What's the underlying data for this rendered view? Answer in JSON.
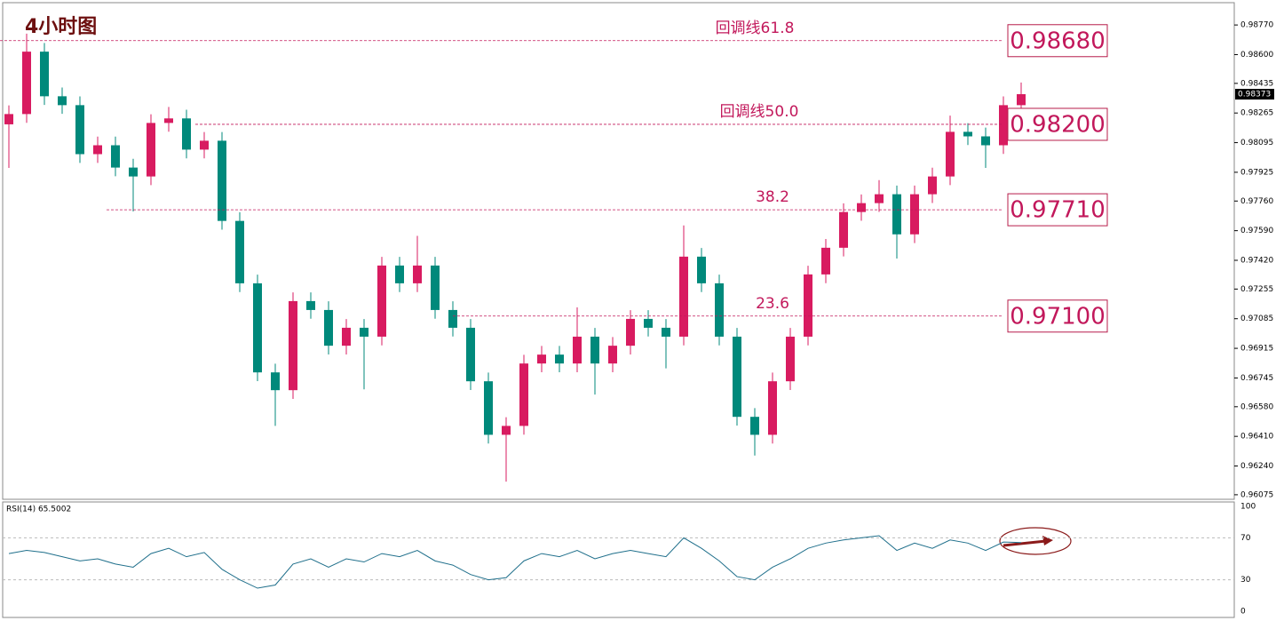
{
  "chart_data": {
    "type": "candlestick",
    "title": "4小时图",
    "open": [
      0.982,
      0.98259,
      0.98617,
      0.98361,
      0.9831,
      0.98029,
      0.9808,
      0.97952,
      0.97901,
      0.98208,
      0.98234,
      0.98055,
      0.98106,
      0.97646,
      0.97288,
      0.96777,
      0.96675,
      0.97186,
      0.97135,
      0.9693,
      0.97033,
      0.96982,
      0.9739,
      0.97288,
      0.9739,
      0.97135,
      0.97033,
      0.96726,
      0.96419,
      0.9647,
      0.96828,
      0.96879,
      0.96828,
      0.96982,
      0.96828,
      0.9693,
      0.97084,
      0.97033,
      0.96982,
      0.97441,
      0.97288,
      0.96982,
      0.96522,
      0.96419,
      0.96726,
      0.96982,
      0.97339,
      0.97492,
      0.97697,
      0.97748,
      0.97799,
      0.97569,
      0.97799,
      0.97901,
      0.98157,
      0.98131,
      0.9808,
      0.9831
    ],
    "high": [
      0.98309,
      0.9872,
      0.98667,
      0.98411,
      0.9836,
      0.9813,
      0.9813,
      0.98002,
      0.98258,
      0.983,
      0.98284,
      0.98156,
      0.98156,
      0.97696,
      0.97338,
      0.96827,
      0.97236,
      0.97236,
      0.97185,
      0.97083,
      0.97083,
      0.9744,
      0.9744,
      0.9756,
      0.9744,
      0.97185,
      0.97083,
      0.96776,
      0.9652,
      0.96878,
      0.96929,
      0.96929,
      0.9715,
      0.97032,
      0.9698,
      0.97134,
      0.97134,
      0.97083,
      0.9762,
      0.97491,
      0.97338,
      0.97032,
      0.96572,
      0.96776,
      0.97032,
      0.97389,
      0.97542,
      0.97747,
      0.97798,
      0.9788,
      0.97849,
      0.97849,
      0.97951,
      0.9825,
      0.98207,
      0.98181,
      0.9836,
      0.9844
    ],
    "low": [
      0.9795,
      0.98209,
      0.98311,
      0.9826,
      0.97979,
      0.97979,
      0.97902,
      0.977,
      0.97851,
      0.98158,
      0.98005,
      0.98005,
      0.97596,
      0.97238,
      0.96727,
      0.9647,
      0.96625,
      0.97085,
      0.9688,
      0.9688,
      0.9668,
      0.96932,
      0.97238,
      0.97238,
      0.97085,
      0.96983,
      0.96676,
      0.96369,
      0.9615,
      0.9642,
      0.96778,
      0.96778,
      0.96778,
      0.9665,
      0.96778,
      0.9688,
      0.96983,
      0.968,
      0.96932,
      0.97238,
      0.96932,
      0.96472,
      0.963,
      0.96369,
      0.96676,
      0.96932,
      0.97289,
      0.97442,
      0.97647,
      0.97698,
      0.9743,
      0.97519,
      0.97749,
      0.97851,
      0.98081,
      0.9795,
      0.9803,
      0.9826
    ],
    "close": [
      0.98259,
      0.98617,
      0.98361,
      0.9831,
      0.98029,
      0.9808,
      0.97952,
      0.97901,
      0.98208,
      0.98234,
      0.98055,
      0.98106,
      0.97646,
      0.97288,
      0.96777,
      0.96675,
      0.97186,
      0.97135,
      0.9693,
      0.97033,
      0.96982,
      0.9739,
      0.97288,
      0.9739,
      0.97135,
      0.97033,
      0.96726,
      0.96419,
      0.9647,
      0.96828,
      0.96879,
      0.96828,
      0.96982,
      0.96828,
      0.9693,
      0.97084,
      0.97033,
      0.96982,
      0.97441,
      0.97288,
      0.96982,
      0.96522,
      0.96419,
      0.96726,
      0.96982,
      0.97339,
      0.97492,
      0.97697,
      0.97748,
      0.97799,
      0.97569,
      0.97799,
      0.97901,
      0.98157,
      0.98131,
      0.9808,
      0.9831,
      0.98373
    ],
    "up_color": "#d81b60",
    "down_color": "#00897b",
    "ylim": [
      0.96049,
      0.98898
    ],
    "yticks": [
      {
        "value": 0.9877,
        "label": "0.98770"
      },
      {
        "value": 0.986,
        "label": "0.98600"
      },
      0.98435,
      0.98265,
      0.98095,
      0.97925,
      {
        "value": 0.9776,
        "label": "0.97760"
      },
      {
        "value": 0.9759,
        "label": "0.97590"
      },
      {
        "value": 0.9742,
        "label": "0.97420"
      },
      0.97255,
      0.97085,
      0.96915,
      0.96745,
      {
        "value": 0.9658,
        "label": "0.96580"
      },
      {
        "value": 0.9641,
        "label": "0.96410"
      },
      {
        "value": 0.9624,
        "label": "0.96240"
      },
      0.96075
    ],
    "current_price": 0.98373,
    "levels": [
      {
        "name": "回调线61.8",
        "value": 0.9868,
        "label": "0.98680"
      },
      {
        "name": "回调线50.0",
        "value": 0.982,
        "label": "0.98200"
      },
      {
        "name": "38.2",
        "value": 0.9771,
        "label": "0.97710"
      },
      {
        "name": "23.6",
        "value": 0.971,
        "label": "0.97100"
      }
    ],
    "level_color": "#c2185b",
    "rsi": {
      "label": "RSI(14) 65.5002",
      "color": "#1f6f8b",
      "ylim": [
        0,
        100
      ],
      "yticks": [
        100,
        70,
        30,
        0
      ],
      "values": [
        55,
        58,
        56,
        52,
        48,
        50,
        45,
        42,
        55,
        60,
        52,
        56,
        40,
        30,
        22,
        25,
        45,
        50,
        42,
        50,
        47,
        55,
        52,
        58,
        48,
        44,
        35,
        30,
        32,
        48,
        55,
        52,
        58,
        50,
        55,
        58,
        55,
        52,
        70,
        60,
        48,
        33,
        30,
        42,
        50,
        60,
        65,
        68,
        70,
        72,
        58,
        65,
        60,
        68,
        65,
        58,
        66,
        65.5002
      ]
    }
  }
}
